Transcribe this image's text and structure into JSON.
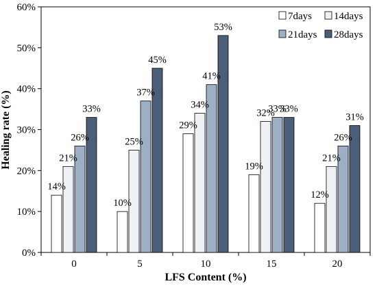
{
  "chart_data": {
    "type": "bar",
    "title": "",
    "xlabel": "LFS Content (%)",
    "ylabel": "Healing rate (%)",
    "categories": [
      "0",
      "5",
      "10",
      "15",
      "20"
    ],
    "ylim": [
      0,
      60
    ],
    "yticks": [
      "0%",
      "10%",
      "20%",
      "30%",
      "40%",
      "50%",
      "60%"
    ],
    "grid": false,
    "legend_position": "top-right",
    "series": [
      {
        "name": "7days",
        "values": [
          14,
          10,
          29,
          19,
          12
        ],
        "labels": [
          "14%",
          "10%",
          "29%",
          "19%",
          "12%"
        ],
        "color": "#ffffff"
      },
      {
        "name": "14days",
        "values": [
          21,
          25,
          34,
          32,
          21
        ],
        "labels": [
          "21%",
          "25%",
          "34%",
          "32%",
          "21%"
        ],
        "color": "#eef1f5"
      },
      {
        "name": "21days",
        "values": [
          26,
          37,
          41,
          33,
          26
        ],
        "labels": [
          "26%",
          "37%",
          "41%",
          "33%",
          "26%"
        ],
        "color": "#9eafc5"
      },
      {
        "name": "28days",
        "values": [
          33,
          45,
          53,
          33,
          31
        ],
        "labels": [
          "33%",
          "45%",
          "53%",
          "33%",
          "31%"
        ],
        "color": "#4c5f79"
      }
    ]
  }
}
